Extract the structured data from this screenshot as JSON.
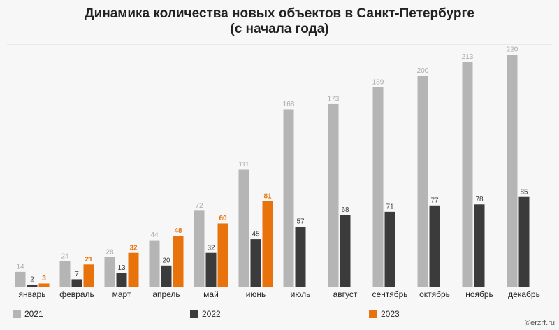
{
  "chart_data": {
    "type": "bar",
    "title": "Динамика количества новых объектов в Санкт-Петербурге",
    "subtitle": "(с начала года)",
    "source": "©erzrf.ru",
    "categories": [
      "январь",
      "февраль",
      "март",
      "апрель",
      "май",
      "июнь",
      "июль",
      "август",
      "сентябрь",
      "октябрь",
      "ноябрь",
      "декабрь"
    ],
    "series": [
      {
        "name": "2021",
        "color": "#b5b5b5",
        "values": [
          14,
          24,
          28,
          44,
          72,
          111,
          168,
          173,
          189,
          200,
          213,
          220
        ]
      },
      {
        "name": "2022",
        "color": "#3b3b3b",
        "values": [
          2,
          7,
          13,
          20,
          32,
          45,
          57,
          68,
          71,
          77,
          78,
          85
        ]
      },
      {
        "name": "2023",
        "color": "#e8720c",
        "values": [
          3,
          21,
          32,
          48,
          60,
          81,
          null,
          null,
          null,
          null,
          null,
          null
        ]
      }
    ]
  }
}
